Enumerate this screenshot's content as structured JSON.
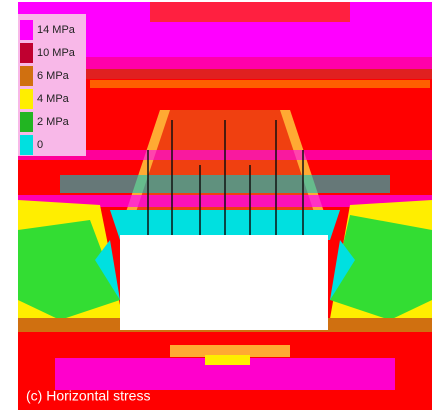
{
  "legend": {
    "items": [
      {
        "label": "14 MPa",
        "color": "#ff00ff"
      },
      {
        "label": "10 MPa",
        "color": "#c00030"
      },
      {
        "label": "6 MPa",
        "color": "#d07010"
      },
      {
        "label": "4 MPa",
        "color": "#ffee00"
      },
      {
        "label": "2 MPa",
        "color": "#22b522"
      },
      {
        "label": "0",
        "color": "#00e0e0"
      }
    ]
  },
  "caption": "(c) Horizontal stress"
}
